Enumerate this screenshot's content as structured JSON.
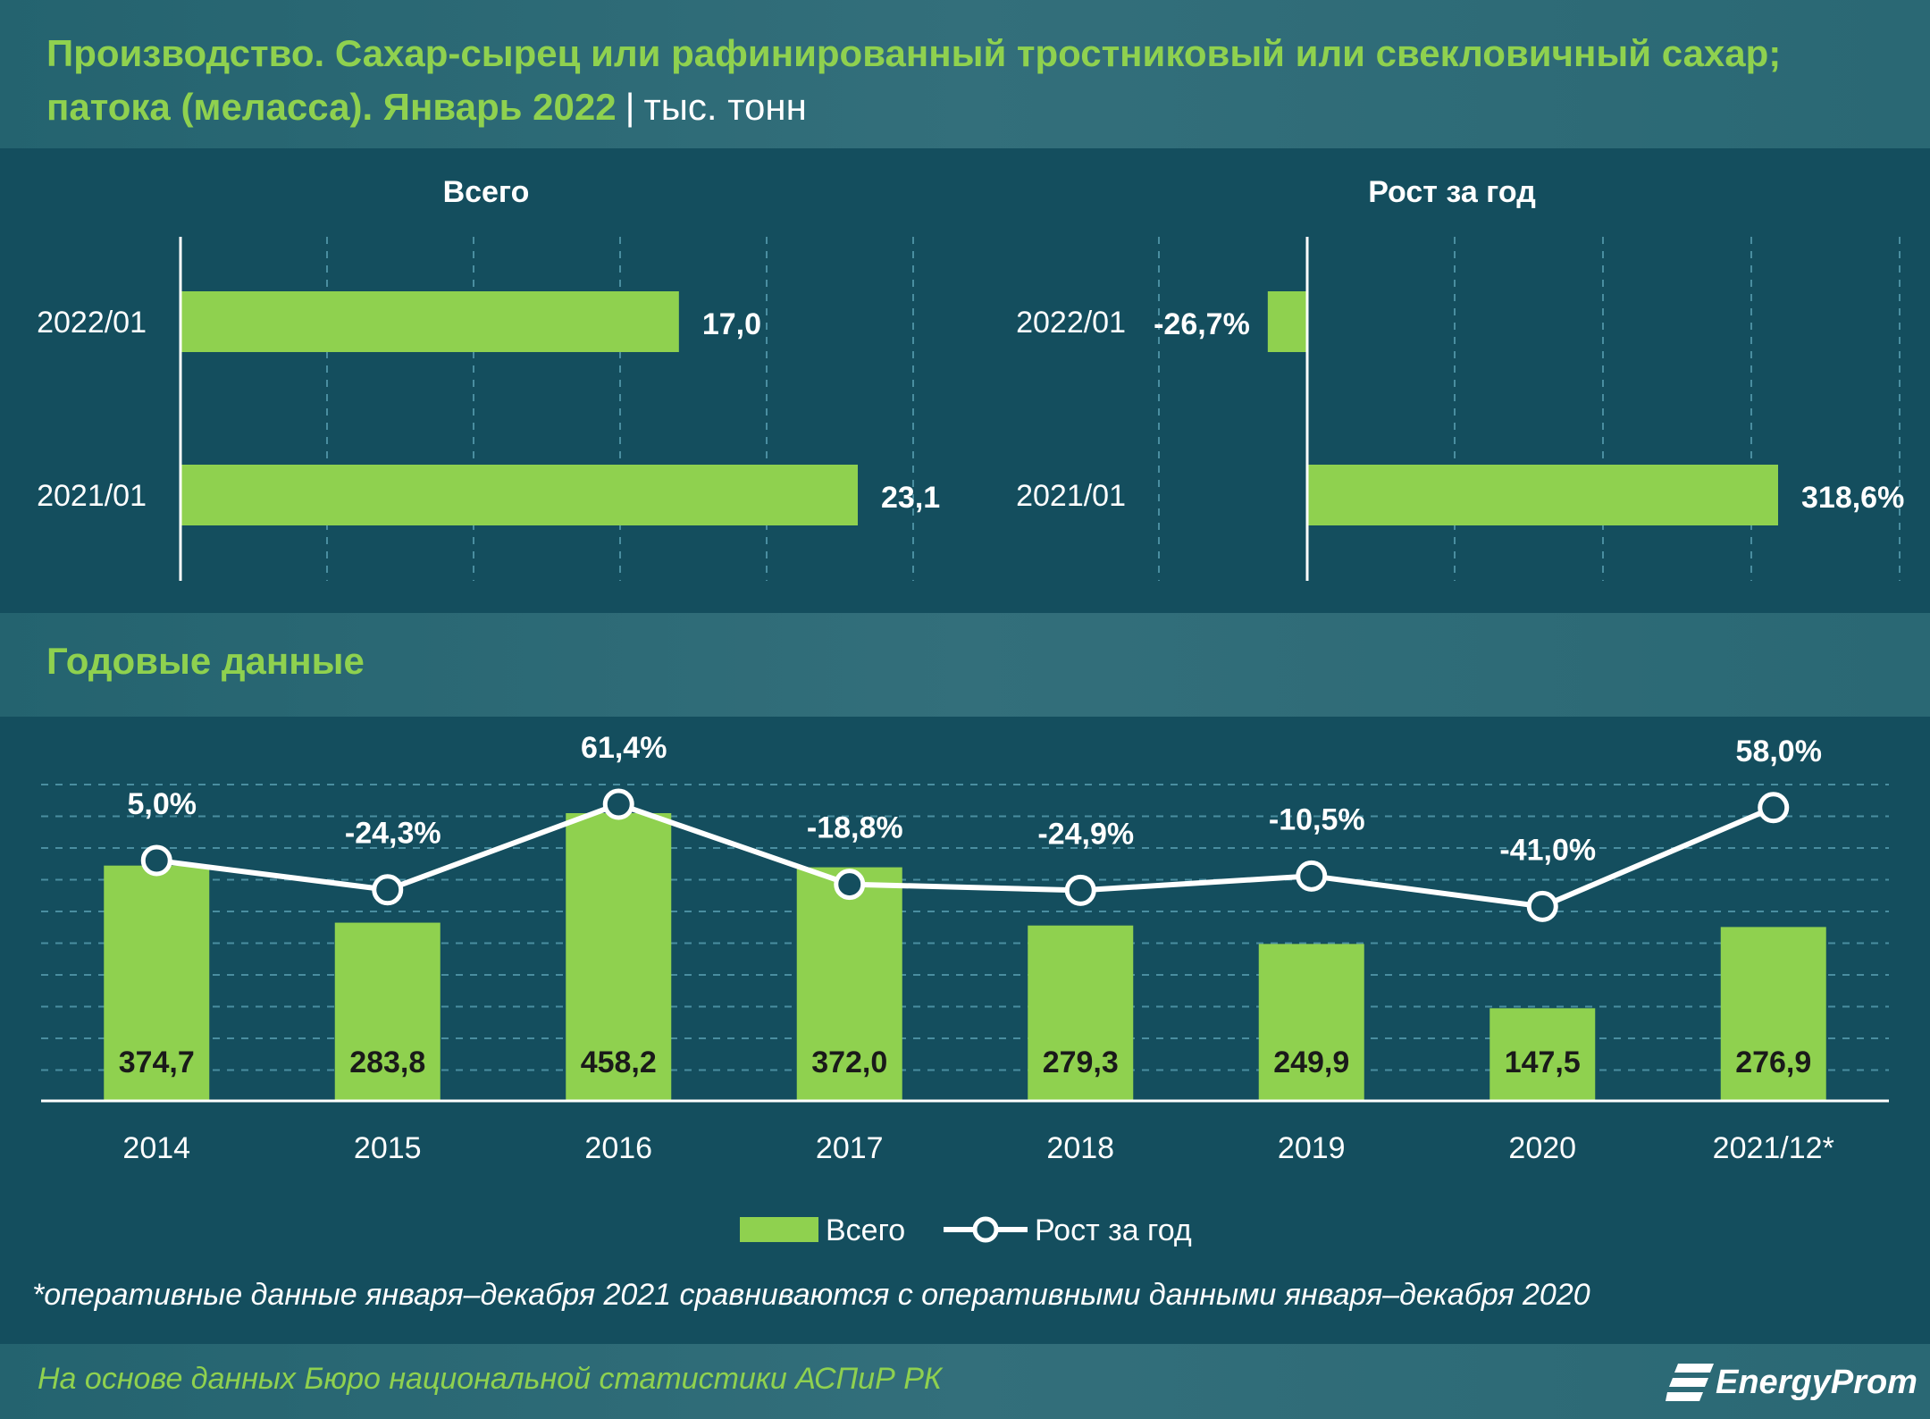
{
  "header": {
    "title": "Производство. Сахар-сырец или рафинированный тростниковый или свекловичный сахар; патока (меласса). Январь 2022",
    "separator": "|",
    "unit": "тыс. тонн"
  },
  "section_annual": {
    "title": "Годовые данные"
  },
  "footnote": "*оперативные данные января–декабря 2021 сравниваются с оперативными данными января–декабря 2020",
  "footer": {
    "source": "На основе данных Бюро национальной статистики АСПиР РК",
    "brand": "EnergyProm"
  },
  "colors": {
    "bar": "#8fd14f",
    "line": "#ffffff",
    "accent": "#8fd14f",
    "background": "#144e5e"
  },
  "chart_data": [
    {
      "type": "bar",
      "orientation": "horizontal",
      "title": "Всего",
      "categories": [
        "2022/01",
        "2021/01"
      ],
      "values": [
        17.0,
        23.1
      ],
      "labels": [
        "17,0",
        "23,1"
      ],
      "xlim": [
        0,
        25
      ]
    },
    {
      "type": "bar",
      "orientation": "horizontal",
      "title": "Рост за год",
      "categories": [
        "2022/01",
        "2021/01"
      ],
      "values": [
        -26.7,
        318.6
      ],
      "labels": [
        "-26,7%",
        "318,6%"
      ],
      "xlim": [
        -26.7,
        400
      ]
    },
    {
      "type": "bar+line",
      "title": "Годовые данные",
      "categories": [
        "2014",
        "2015",
        "2016",
        "2017",
        "2018",
        "2019",
        "2020",
        "2021/12*"
      ],
      "series": [
        {
          "name": "Всего",
          "type": "bar",
          "values": [
            374.7,
            283.8,
            458.2,
            372.0,
            279.3,
            249.9,
            147.5,
            276.9
          ],
          "labels": [
            "374,7",
            "283,8",
            "458,2",
            "372,0",
            "279,3",
            "249,9",
            "147,5",
            "276,9"
          ]
        },
        {
          "name": "Рост за год",
          "type": "line",
          "values": [
            5.0,
            -24.3,
            61.4,
            -18.8,
            -24.9,
            -10.5,
            -41.0,
            58.0
          ],
          "labels": [
            "5,0%",
            "-24,3%",
            "61,4%",
            "-18,8%",
            "-24,9%",
            "-10,5%",
            "-41,0%",
            "58,0%"
          ]
        }
      ],
      "legend": {
        "position": "bottom",
        "items": [
          "Всего",
          "Рост за год"
        ]
      }
    }
  ]
}
